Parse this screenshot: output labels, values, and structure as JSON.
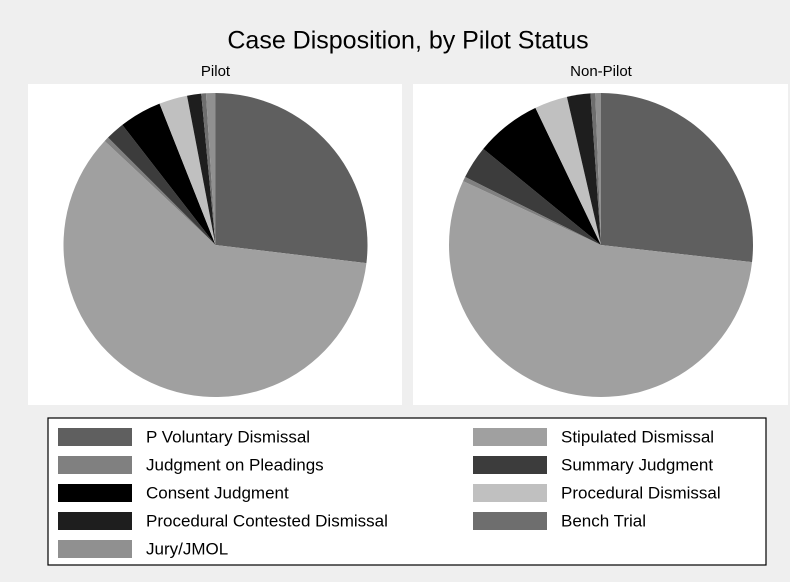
{
  "chart_data": {
    "type": "pie",
    "title": "Case Disposition, by Pilot Status",
    "categories": [
      "P Voluntary Dismissal",
      "Stipulated Dismissal",
      "Judgment on Pleadings",
      "Summary Judgment",
      "Consent Judgment",
      "Procedural Dismissal",
      "Procedural Contested Dismissal",
      "Bench Trial",
      "Jury/JMOL"
    ],
    "colors": [
      "#5f5f5f",
      "#a0a0a0",
      "#808080",
      "#3c3c3c",
      "#000000",
      "#c0c0c0",
      "#1e1e1e",
      "#6e6e6e",
      "#909090"
    ],
    "series": [
      {
        "name": "Pilot",
        "values": [
          26.9,
          60.1,
          0.5,
          2,
          4.5,
          3,
          1.5,
          0.5,
          1
        ]
      },
      {
        "name": "Non-Pilot",
        "values": [
          26.8,
          55.1,
          0.5,
          3.5,
          7,
          3.5,
          2.5,
          0.5,
          0.6
        ]
      }
    ]
  }
}
